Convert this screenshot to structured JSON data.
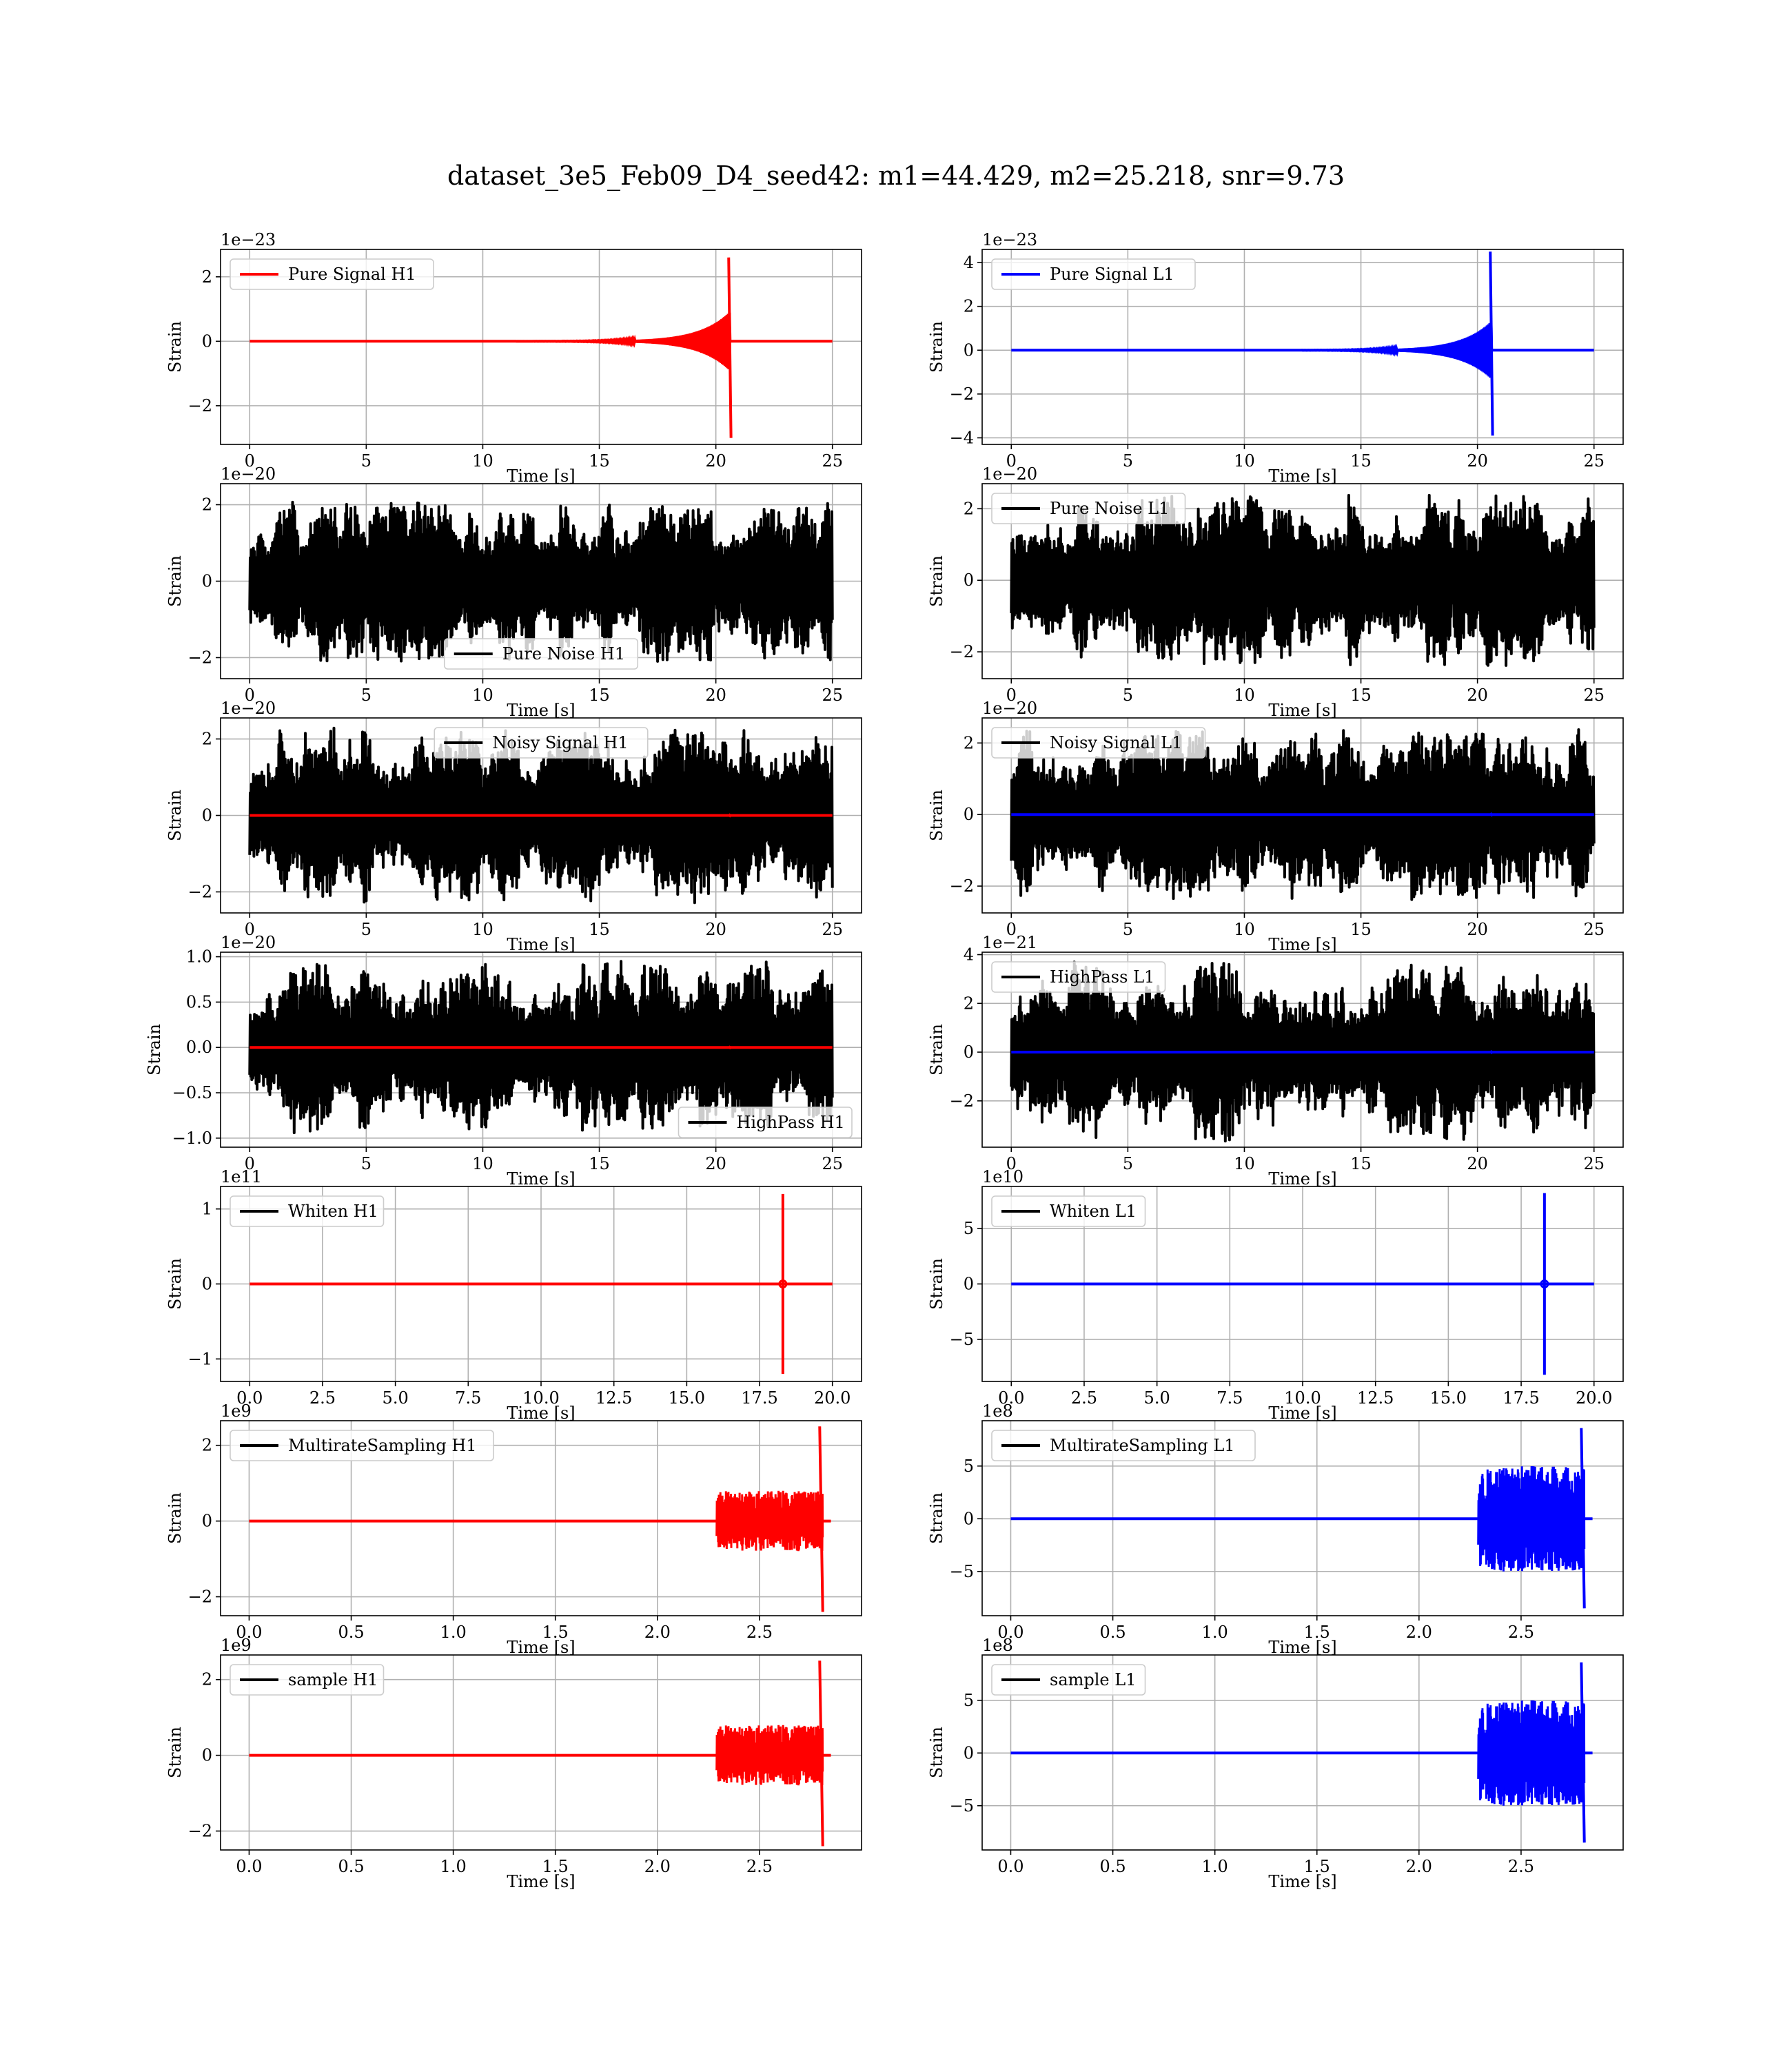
{
  "figure": {
    "suptitle": "dataset_3e5_Feb09_D4_seed42: m1=44.429, m2=25.218, snr=9.73"
  },
  "colors": {
    "H1": "#ff0000",
    "L1": "#0000ff",
    "noise": "#000000"
  },
  "chart_data": [
    {
      "type": "line",
      "detector": "H1",
      "row": 0,
      "xlabel": "Time [s]",
      "ylabel": "Strain",
      "offset_text": "1e−23",
      "xlim": [
        -1.25,
        26.25
      ],
      "ylim": [
        -3.2,
        2.85
      ],
      "xticks": [
        0,
        5,
        10,
        15,
        20,
        25
      ],
      "xticklabels": [
        "0",
        "5",
        "10",
        "15",
        "20",
        "25"
      ],
      "yticks": [
        -2,
        0,
        2
      ],
      "yticklabels": [
        "−2",
        "0",
        "2"
      ],
      "legend": {
        "loc": "upper left",
        "label": "Pure Signal H1",
        "color": "#ff0000"
      },
      "noise": null,
      "signal": {
        "t0": 0,
        "t1": 25,
        "tm": 20.6,
        "pre_amp": 0.9,
        "peak_pos": 2.6,
        "peak_neg": -3.0,
        "color": "#ff0000"
      }
    },
    {
      "type": "line",
      "detector": "L1",
      "row": 0,
      "xlabel": "Time [s]",
      "ylabel": "Strain",
      "offset_text": "1e−23",
      "xlim": [
        -1.25,
        26.25
      ],
      "ylim": [
        -4.3,
        4.6
      ],
      "xticks": [
        0,
        5,
        10,
        15,
        20,
        25
      ],
      "xticklabels": [
        "0",
        "5",
        "10",
        "15",
        "20",
        "25"
      ],
      "yticks": [
        -4,
        -2,
        0,
        2,
        4
      ],
      "yticklabels": [
        "−4",
        "−2",
        "0",
        "2",
        "4"
      ],
      "legend": {
        "loc": "upper left",
        "label": "Pure Signal L1",
        "color": "#0000ff"
      },
      "noise": null,
      "signal": {
        "t0": 0,
        "t1": 25,
        "tm": 20.6,
        "pre_amp": 1.3,
        "peak_pos": 4.5,
        "peak_neg": -3.9,
        "color": "#0000ff"
      }
    },
    {
      "type": "line",
      "detector": "H1",
      "row": 1,
      "xlabel": "Time [s]",
      "ylabel": "Strain",
      "offset_text": "1e−20",
      "xlim": [
        -1.25,
        26.25
      ],
      "ylim": [
        -2.55,
        2.55
      ],
      "xticks": [
        0,
        5,
        10,
        15,
        20,
        25
      ],
      "xticklabels": [
        "0",
        "5",
        "10",
        "15",
        "20",
        "25"
      ],
      "yticks": [
        -2,
        0,
        2
      ],
      "yticklabels": [
        "−2",
        "0",
        "2"
      ],
      "legend": {
        "loc": "lower center",
        "label": "Pure Noise H1",
        "color": "#000000"
      },
      "noise": {
        "t0": 0,
        "t1": 25,
        "amp": 2.1,
        "seed": 11
      },
      "signal": null
    },
    {
      "type": "line",
      "detector": "L1",
      "row": 1,
      "xlabel": "Time [s]",
      "ylabel": "Strain",
      "offset_text": "1e−20",
      "xlim": [
        -1.25,
        26.25
      ],
      "ylim": [
        -2.75,
        2.7
      ],
      "xticks": [
        0,
        5,
        10,
        15,
        20,
        25
      ],
      "xticklabels": [
        "0",
        "5",
        "10",
        "15",
        "20",
        "25"
      ],
      "yticks": [
        -2,
        0,
        2
      ],
      "yticklabels": [
        "−2",
        "0",
        "2"
      ],
      "legend": {
        "loc": "upper left",
        "label": "Pure Noise L1",
        "color": "#000000"
      },
      "noise": {
        "t0": 0,
        "t1": 25,
        "amp": 2.4,
        "seed": 23
      },
      "signal": null
    },
    {
      "type": "line",
      "detector": "H1",
      "row": 2,
      "xlabel": "Time [s]",
      "ylabel": "Strain",
      "offset_text": "1e−20",
      "xlim": [
        -1.25,
        26.25
      ],
      "ylim": [
        -2.55,
        2.55
      ],
      "xticks": [
        0,
        5,
        10,
        15,
        20,
        25
      ],
      "xticklabels": [
        "0",
        "5",
        "10",
        "15",
        "20",
        "25"
      ],
      "yticks": [
        -2,
        0,
        2
      ],
      "yticklabels": [
        "−2",
        "0",
        "2"
      ],
      "legend": {
        "loc": "upper center",
        "label": "Noisy Signal H1",
        "color": "#000000"
      },
      "noise": {
        "t0": 0,
        "t1": 25,
        "amp": 2.3,
        "seed": 37
      },
      "signal": {
        "t0": 0,
        "t1": 25,
        "tm": 20.6,
        "pre_amp": 0,
        "peak_pos": 0.03,
        "peak_neg": -0.03,
        "color": "#ff0000"
      }
    },
    {
      "type": "line",
      "detector": "L1",
      "row": 2,
      "xlabel": "Time [s]",
      "ylabel": "Strain",
      "offset_text": "1e−20",
      "xlim": [
        -1.25,
        26.25
      ],
      "ylim": [
        -2.75,
        2.7
      ],
      "xticks": [
        0,
        5,
        10,
        15,
        20,
        25
      ],
      "xticklabels": [
        "0",
        "5",
        "10",
        "15",
        "20",
        "25"
      ],
      "yticks": [
        -2,
        0,
        2
      ],
      "yticklabels": [
        "−2",
        "0",
        "2"
      ],
      "legend": {
        "loc": "upper left",
        "label": "Noisy Signal L1",
        "color": "#000000"
      },
      "noise": {
        "t0": 0,
        "t1": 25,
        "amp": 2.4,
        "seed": 41
      },
      "signal": {
        "t0": 0,
        "t1": 25,
        "tm": 20.6,
        "pre_amp": 0,
        "peak_pos": 0.04,
        "peak_neg": -0.04,
        "color": "#0000ff"
      }
    },
    {
      "type": "line",
      "detector": "H1",
      "row": 3,
      "xlabel": "Time [s]",
      "ylabel": "Strain",
      "offset_text": "1e−20",
      "xlim": [
        -1.25,
        26.25
      ],
      "ylim": [
        -1.1,
        1.05
      ],
      "xticks": [
        0,
        5,
        10,
        15,
        20,
        25
      ],
      "xticklabels": [
        "0",
        "5",
        "10",
        "15",
        "20",
        "25"
      ],
      "yticks": [
        -1.0,
        -0.5,
        0.0,
        0.5,
        1.0
      ],
      "yticklabels": [
        "−1.0",
        "−0.5",
        "0.0",
        "0.5",
        "1.0"
      ],
      "legend": {
        "loc": "lower right",
        "label": "HighPass H1",
        "color": "#000000"
      },
      "noise": {
        "t0": 0,
        "t1": 25,
        "amp": 0.95,
        "seed": 53
      },
      "signal": {
        "t0": 0,
        "t1": 25,
        "tm": 20.6,
        "pre_amp": 0,
        "peak_pos": 0.01,
        "peak_neg": -0.01,
        "color": "#ff0000"
      }
    },
    {
      "type": "line",
      "detector": "L1",
      "row": 3,
      "xlabel": "Time [s]",
      "ylabel": "Strain",
      "offset_text": "1e−21",
      "xlim": [
        -1.25,
        26.25
      ],
      "ylim": [
        -3.9,
        4.1
      ],
      "xticks": [
        0,
        5,
        10,
        15,
        20,
        25
      ],
      "xticklabels": [
        "0",
        "5",
        "10",
        "15",
        "20",
        "25"
      ],
      "yticks": [
        -2,
        0,
        2,
        4
      ],
      "yticklabels": [
        "−2",
        "0",
        "2",
        "4"
      ],
      "legend": {
        "loc": "upper left",
        "label": "HighPass L1",
        "color": "#000000"
      },
      "noise": {
        "t0": 0,
        "t1": 25,
        "amp": 3.7,
        "seed": 67
      },
      "signal": {
        "t0": 0,
        "t1": 25,
        "tm": 20.6,
        "pre_amp": 0,
        "peak_pos": 0.05,
        "peak_neg": -0.05,
        "color": "#0000ff"
      }
    },
    {
      "type": "line",
      "detector": "H1",
      "row": 4,
      "xlabel": "Time [s]",
      "ylabel": "Strain",
      "offset_text": "1e11",
      "xlim": [
        -1.0,
        21.0
      ],
      "ylim": [
        -1.3,
        1.3
      ],
      "xticks": [
        0,
        2.5,
        5,
        7.5,
        10,
        12.5,
        15,
        17.5,
        20
      ],
      "xticklabels": [
        "0.0",
        "2.5",
        "5.0",
        "7.5",
        "10.0",
        "12.5",
        "15.0",
        "17.5",
        "20.0"
      ],
      "yticks": [
        -1,
        0,
        1
      ],
      "yticklabels": [
        "−1",
        "0",
        "1"
      ],
      "legend": {
        "loc": "upper left",
        "label": "Whiten H1",
        "color": "#000000"
      },
      "noise": null,
      "spike": {
        "t0": 0,
        "t1": 20,
        "ts": 18.3,
        "pos": 1.2,
        "neg": -1.2,
        "color": "#ff0000"
      }
    },
    {
      "type": "line",
      "detector": "L1",
      "row": 4,
      "xlabel": "Time [s]",
      "ylabel": "Strain",
      "offset_text": "1e10",
      "xlim": [
        -1.0,
        21.0
      ],
      "ylim": [
        -8.8,
        8.8
      ],
      "xticks": [
        0,
        2.5,
        5,
        7.5,
        10,
        12.5,
        15,
        17.5,
        20
      ],
      "xticklabels": [
        "0.0",
        "2.5",
        "5.0",
        "7.5",
        "10.0",
        "12.5",
        "15.0",
        "17.5",
        "20.0"
      ],
      "yticks": [
        -5,
        0,
        5
      ],
      "yticklabels": [
        "−5",
        "0",
        "5"
      ],
      "legend": {
        "loc": "upper left",
        "label": "Whiten L1",
        "color": "#000000"
      },
      "noise": null,
      "spike": {
        "t0": 0,
        "t1": 20,
        "ts": 18.3,
        "pos": 8.2,
        "neg": -8.2,
        "color": "#0000ff"
      }
    },
    {
      "type": "line",
      "detector": "H1",
      "row": 5,
      "xlabel": "Time [s]",
      "ylabel": "Strain",
      "offset_text": "1e9",
      "xlim": [
        -0.14,
        3.0
      ],
      "ylim": [
        -2.5,
        2.65
      ],
      "xticks": [
        0,
        0.5,
        1.0,
        1.5,
        2.0,
        2.5
      ],
      "xticklabels": [
        "0.0",
        "0.5",
        "1.0",
        "1.5",
        "2.0",
        "2.5"
      ],
      "yticks": [
        -2,
        0,
        2
      ],
      "yticklabels": [
        "−2",
        "0",
        "2"
      ],
      "legend": {
        "loc": "upper left",
        "label": "MultirateSampling H1",
        "color": "#000000"
      },
      "noise": null,
      "burst": {
        "t0": 0,
        "t1": 2.85,
        "ts": 2.29,
        "te": 2.81,
        "amp": 0.8,
        "peak_pos": 2.5,
        "peak_neg": -2.4,
        "seed": 91,
        "color": "#ff0000"
      }
    },
    {
      "type": "line",
      "detector": "L1",
      "row": 5,
      "xlabel": "Time [s]",
      "ylabel": "Strain",
      "offset_text": "1e8",
      "xlim": [
        -0.14,
        3.0
      ],
      "ylim": [
        -9.2,
        9.3
      ],
      "xticks": [
        0,
        0.5,
        1.0,
        1.5,
        2.0,
        2.5
      ],
      "xticklabels": [
        "0.0",
        "0.5",
        "1.0",
        "1.5",
        "2.0",
        "2.5"
      ],
      "yticks": [
        -5,
        0,
        5
      ],
      "yticklabels": [
        "−5",
        "0",
        "5"
      ],
      "legend": {
        "loc": "upper left",
        "label": "MultirateSampling L1",
        "color": "#000000"
      },
      "noise": null,
      "burst": {
        "t0": 0,
        "t1": 2.85,
        "ts": 2.29,
        "te": 2.81,
        "amp": 5.0,
        "peak_pos": 8.6,
        "peak_neg": -8.5,
        "seed": 97,
        "color": "#0000ff"
      }
    },
    {
      "type": "line",
      "detector": "H1",
      "row": 6,
      "xlabel": "Time [s]",
      "ylabel": "Strain",
      "offset_text": "1e9",
      "xlim": [
        -0.14,
        3.0
      ],
      "ylim": [
        -2.5,
        2.65
      ],
      "xticks": [
        0,
        0.5,
        1.0,
        1.5,
        2.0,
        2.5
      ],
      "xticklabels": [
        "0.0",
        "0.5",
        "1.0",
        "1.5",
        "2.0",
        "2.5"
      ],
      "yticks": [
        -2,
        0,
        2
      ],
      "yticklabels": [
        "−2",
        "0",
        "2"
      ],
      "legend": {
        "loc": "upper left",
        "label": "sample H1",
        "color": "#000000"
      },
      "noise": null,
      "burst": {
        "t0": 0,
        "t1": 2.85,
        "ts": 2.29,
        "te": 2.81,
        "amp": 0.8,
        "peak_pos": 2.5,
        "peak_neg": -2.4,
        "seed": 91,
        "color": "#ff0000"
      }
    },
    {
      "type": "line",
      "detector": "L1",
      "row": 6,
      "xlabel": "Time [s]",
      "ylabel": "Strain",
      "offset_text": "1e8",
      "xlim": [
        -0.14,
        3.0
      ],
      "ylim": [
        -9.2,
        9.3
      ],
      "xticks": [
        0,
        0.5,
        1.0,
        1.5,
        2.0,
        2.5
      ],
      "xticklabels": [
        "0.0",
        "0.5",
        "1.0",
        "1.5",
        "2.0",
        "2.5"
      ],
      "yticks": [
        -5,
        0,
        5
      ],
      "yticklabels": [
        "−5",
        "0",
        "5"
      ],
      "legend": {
        "loc": "upper left",
        "label": "sample L1",
        "color": "#000000"
      },
      "noise": null,
      "burst": {
        "t0": 0,
        "t1": 2.85,
        "ts": 2.29,
        "te": 2.81,
        "amp": 5.0,
        "peak_pos": 8.6,
        "peak_neg": -8.5,
        "seed": 97,
        "color": "#0000ff"
      }
    }
  ]
}
